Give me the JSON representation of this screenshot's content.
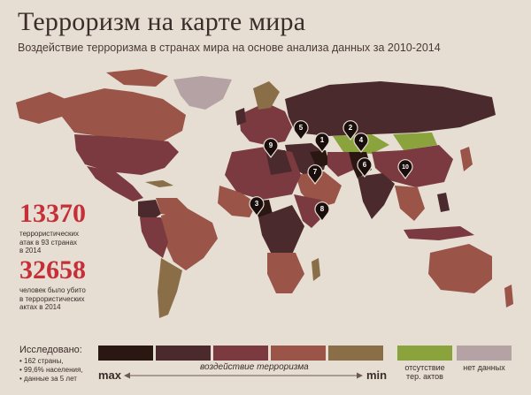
{
  "header": {
    "title": "Терроризм на карте мира",
    "subtitle": "Воздействие терроризма в странах мира на основе анализа данных за 2010-2014"
  },
  "stats": {
    "attacks_number": "13370",
    "attacks_line1": "террористических",
    "attacks_line2": "атак в 93 странах",
    "attacks_line3": "в 2014",
    "killed_number": "32658",
    "killed_line1": "человек было убито",
    "killed_line2": "в террористических",
    "killed_line3": "актах в 2014"
  },
  "studied": {
    "title": "Исследовано:",
    "items": [
      "162 страны,",
      "99,6% населения,",
      "данные за 5 лет"
    ]
  },
  "legend": {
    "scale_caption": "воздействие терроризма",
    "max_label": "max",
    "min_label": "min",
    "no_acts_line1": "отсутствие",
    "no_acts_line2": "тер. актов",
    "no_data": "нет данных",
    "colors": [
      "#2b1712",
      "#4a2a2c",
      "#7a3a40",
      "#9a5448",
      "#8a6e48"
    ],
    "no_acts_color": "#8aa33c",
    "no_data_color": "#b5a2a4"
  },
  "markers": [
    "1",
    "2",
    "3",
    "4",
    "5",
    "6",
    "7",
    "8",
    "9",
    "10"
  ],
  "palette": {
    "ocean": "#e6ddd3",
    "accent_red": "#c62f37"
  }
}
